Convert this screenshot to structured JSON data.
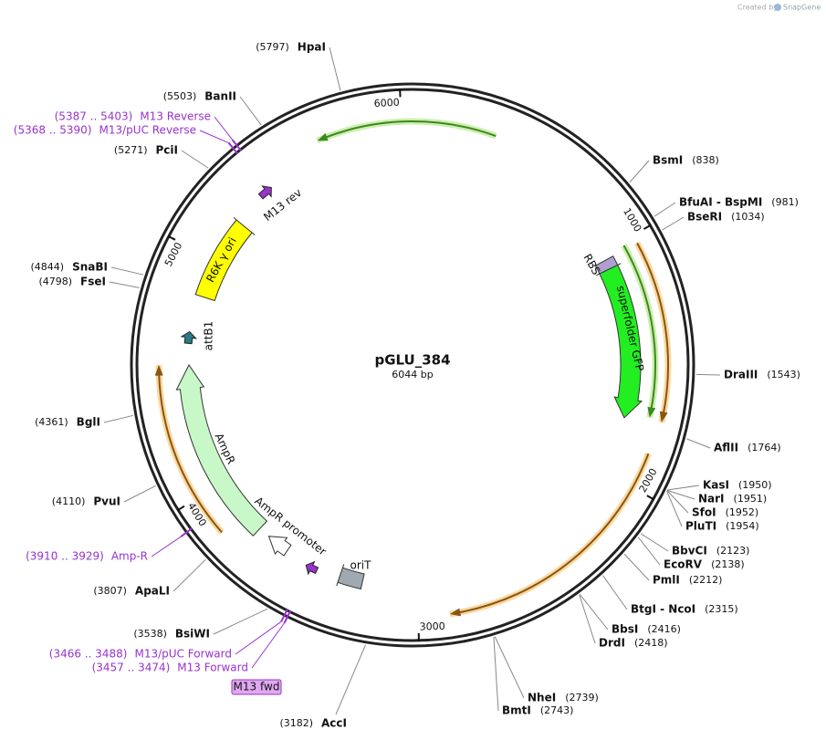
{
  "header": {
    "created_by": "Created by",
    "brand": "SnapGene"
  },
  "plasmid": {
    "name": "pGLU_384",
    "length": "6044 bp"
  },
  "ticks": [
    1000,
    2000,
    3000,
    4000,
    5000,
    6000
  ],
  "sites": [
    {
      "name": "BsmI",
      "position": "(838)"
    },
    {
      "name": "BfuAI - BspMI",
      "position": "(981)"
    },
    {
      "name": "BseRI",
      "position": "(1034)"
    },
    {
      "name": "DraIII",
      "position": "(1543)"
    },
    {
      "name": "AflII",
      "position": "(1764)"
    },
    {
      "name": "KasI",
      "position": "(1950)"
    },
    {
      "name": "NarI",
      "position": "(1951)"
    },
    {
      "name": "SfoI",
      "position": "(1952)"
    },
    {
      "name": "PluTI",
      "position": "(1954)"
    },
    {
      "name": "BbvCI",
      "position": "(2123)"
    },
    {
      "name": "EcoRV",
      "position": "(2138)"
    },
    {
      "name": "PmlI",
      "position": "(2212)"
    },
    {
      "name": "BtgI - NcoI",
      "position": "(2315)"
    },
    {
      "name": "BbsI",
      "position": "(2416)"
    },
    {
      "name": "DrdI",
      "position": "(2418)"
    },
    {
      "name": "NheI",
      "position": "(2739)"
    },
    {
      "name": "BmtI",
      "position": "(2743)"
    },
    {
      "name": "AccI",
      "position": "(3182)"
    },
    {
      "name": "BsiWI",
      "position": "(3538)"
    },
    {
      "name": "ApaLI",
      "position": "(3807)"
    },
    {
      "name": "PvuI",
      "position": "(4110)"
    },
    {
      "name": "BglI",
      "position": "(4361)"
    },
    {
      "name": "FseI",
      "position": "(4798)"
    },
    {
      "name": "SnaBI",
      "position": "(4844)"
    },
    {
      "name": "PciI",
      "position": "(5271)"
    },
    {
      "name": "BanII",
      "position": "(5503)"
    },
    {
      "name": "HpaI",
      "position": "(5797)"
    }
  ],
  "primers": [
    {
      "name": "M13/pUC Forward",
      "position": "(3466 .. 3488)"
    },
    {
      "name": "M13 Forward",
      "position": "(3457 .. 3474)"
    },
    {
      "name": "Amp-R",
      "position": "(3910 .. 3929)"
    },
    {
      "name": "M13/pUC Reverse",
      "position": "(5368 .. 5390)"
    },
    {
      "name": "M13 Reverse",
      "position": "(5387 .. 5403)"
    }
  ],
  "features": [
    {
      "label": "superfolder GFP"
    },
    {
      "label": "RBS"
    },
    {
      "label": "R6K γ ori"
    },
    {
      "label": "attB1"
    },
    {
      "label": "AmpR"
    },
    {
      "label": "AmpR promoter"
    },
    {
      "label": "oriT"
    },
    {
      "label": "M13 rev"
    },
    {
      "label": "M13 fwd"
    }
  ]
}
